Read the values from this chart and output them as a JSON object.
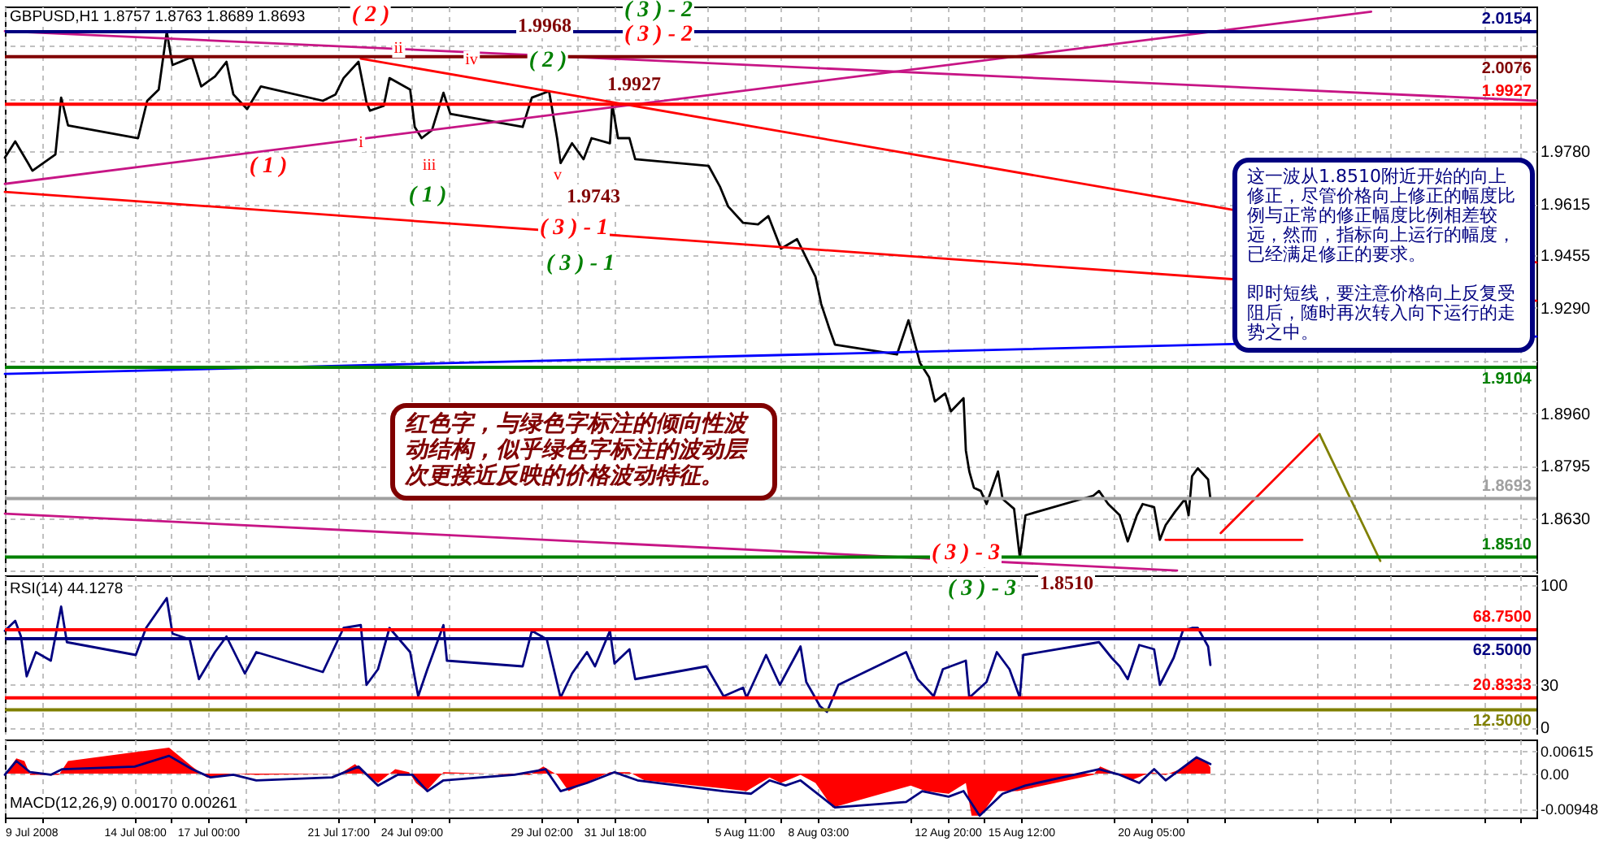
{
  "chart_data": [
    {
      "type": "line",
      "title": "GBPUSD,H1 1.8757 1.8763 1.8689 1.8693",
      "xlim": [
        "2008-07-09T15:00",
        "2008-09-03T05:00"
      ],
      "ylim": [
        1.8463,
        2.0233
      ],
      "xticks": [
        "2008-07-09T15:00",
        "2008-07-10T23:00",
        "2008-07-14T08:00",
        "2008-07-15T16:00",
        "2008-07-17T00:00",
        "2008-07-18T08:00",
        "2008-07-21T17:00",
        "2008-07-23T01:00",
        "2008-07-24T09:00",
        "2008-07-25T17:00",
        "2008-07-29T02:00",
        "2008-07-30T10:00",
        "2008-07-31T18:00",
        "2008-08-04T03:00",
        "2008-08-05T11:00",
        "2008-08-06T19:00",
        "2008-08-08T03:00",
        "2008-08-11T12:00",
        "2008-08-12T20:00",
        "2008-08-14T04:00",
        "2008-08-15T12:00",
        "2008-08-18T21:00",
        "2008-08-20T05:00",
        "2008-08-21T13:00",
        "2008-08-22T21:00",
        "2008-08-26T06:00",
        "2008-08-27T14:00",
        "2008-08-28T22:00",
        "2008-09-01T07:00",
        "2008-09-02T15:00"
      ],
      "yticks": [
        {
          "value": 2.011,
          "label": null
        },
        {
          "value": 1.9945,
          "label": null
        },
        {
          "value": 1.978,
          "label": "1.9780"
        },
        1.9615,
        1.9455,
        {
          "value": 1.929,
          "label": "1.9290"
        },
        {
          "value": 1.9125,
          "label": null
        },
        {
          "value": 1.896,
          "label": "1.8960"
        },
        1.8795,
        {
          "value": 1.863,
          "label": "1.8630"
        },
        {
          "value": 1.847,
          "label": null
        }
      ],
      "grid": true,
      "tick_labels": "y",
      "series": [
        {
          "color": "#000000",
          "x": [
            "2008-07-09T15:00",
            "2008-07-10T00:00",
            "2008-07-10T11:00",
            "2008-07-10T15:00",
            "2008-07-11T11:00",
            "2008-07-11T16:00",
            "2008-07-11T22:00",
            "2008-07-14T11:00",
            "2008-07-14T19:00",
            "2008-07-15T05:00",
            "2008-07-15T12:00",
            "2008-07-15T17:00",
            "2008-07-16T10:00",
            "2008-07-16T18:00",
            "2008-07-17T06:00",
            "2008-07-17T16:00",
            "2008-07-17T22:00",
            "2008-07-18T10:00",
            "2008-07-18T22:00",
            "2008-07-21T04:00",
            "2008-07-21T15:00",
            "2008-07-21T22:00",
            "2008-07-22T11:00",
            "2008-07-22T18:00",
            "2008-07-22T21:00",
            "2008-07-23T09:00",
            "2008-07-23T14:00",
            "2008-07-24T08:00",
            "2008-07-24T12:00",
            "2008-07-24T18:00",
            "2008-07-25T03:00",
            "2008-07-25T13:00",
            "2008-07-25T19:00",
            "2008-07-28T10:00",
            "2008-07-28T18:00",
            "2008-07-29T09:00",
            "2008-07-29T16:00",
            "2008-07-29T19:00",
            "2008-07-30T05:00",
            "2008-07-30T15:00",
            "2008-07-30T22:00",
            "2008-07-31T14:00",
            "2008-07-31T16:00",
            "2008-07-31T21:00",
            "2008-08-01T07:00",
            "2008-08-01T12:00",
            "2008-08-04T04:00",
            "2008-08-04T14:00",
            "2008-08-04T21:00",
            "2008-08-05T10:00",
            "2008-08-05T23:00",
            "2008-08-06T08:00",
            "2008-08-06T19:00",
            "2008-08-07T09:00",
            "2008-08-08T01:00",
            "2008-08-08T06:00",
            "2008-08-08T13:00",
            "2008-08-08T18:00",
            "2008-08-11T00:00",
            "2008-08-11T10:00",
            "2008-08-11T17:00",
            "2008-08-11T20:00",
            "2008-08-12T04:00",
            "2008-08-12T09:00",
            "2008-08-12T18:00",
            "2008-08-12T23:00",
            "2008-08-13T10:00",
            "2008-08-13T12:00",
            "2008-08-13T15:00",
            "2008-08-13T19:00",
            "2008-08-14T01:00",
            "2008-08-14T06:00",
            "2008-08-14T16:00",
            "2008-08-14T20:00",
            "2008-08-15T06:00",
            "2008-08-15T11:00",
            "2008-08-15T16:00",
            "2008-08-18T03:00",
            "2008-08-18T08:00",
            "2008-08-18T16:00",
            "2008-08-19T02:00",
            "2008-08-19T09:00",
            "2008-08-19T17:00",
            "2008-08-19T22:00",
            "2008-08-20T08:00",
            "2008-08-20T13:00",
            "2008-08-20T18:00",
            "2008-08-21T02:00",
            "2008-08-21T11:00",
            "2008-08-21T14:00",
            "2008-08-21T17:00",
            "2008-08-21T22:00",
            "2008-08-22T07:00",
            "2008-08-22T09:00"
          ],
          "values": [
            1.976,
            1.9811,
            1.9744,
            1.9719,
            1.977,
            1.9948,
            1.9861,
            1.9821,
            1.9938,
            1.9973,
            2.0154,
            2.005,
            2.0075,
            1.9983,
            2.0014,
            2.006,
            1.9958,
            1.9912,
            1.9983,
            1.9938,
            1.9958,
            2.0009,
            2.006,
            1.9933,
            1.9907,
            1.9922,
            2.0009,
            1.9973,
            1.9856,
            1.9821,
            1.9846,
            1.9963,
            1.9897,
            1.9856,
            1.9948,
            1.9968,
            1.9821,
            1.9743,
            1.9805,
            1.9755,
            1.9821,
            1.9805,
            1.9927,
            1.9821,
            1.9821,
            1.9755,
            1.9734,
            1.9668,
            1.9607,
            1.9556,
            1.9551,
            1.9577,
            1.9475,
            1.9505,
            1.9388,
            1.9302,
            1.9226,
            1.9175,
            1.9144,
            1.9251,
            1.9159,
            1.9118,
            1.9073,
            1.8997,
            1.9022,
            1.8966,
            1.9007,
            1.8844,
            1.8778,
            1.8727,
            1.8717,
            1.8676,
            1.8778,
            1.8692,
            1.8661,
            1.851,
            1.8641,
            1.8702,
            1.8717,
            1.8676,
            1.8641,
            1.8559,
            1.8641,
            1.8676,
            1.8666,
            1.8564,
            1.861,
            1.8651,
            1.8692,
            1.8641,
            1.8763,
            1.8788,
            1.8753,
            1.8693
          ]
        },
        {
          "color": "#ff0000",
          "x": [
            "2008-07-22T13:00",
            "2008-09-03T05:00"
          ],
          "values": [
            2.007,
            1.9432
          ]
        },
        {
          "color": "#ff0000",
          "x": [
            "2008-07-09T15:00",
            "2008-09-03T05:00"
          ],
          "values": [
            1.9653,
            1.9312
          ]
        },
        {
          "color": "#c71585",
          "x": [
            "2008-07-09T15:00",
            "2008-09-03T05:00"
          ],
          "values": [
            2.0156,
            1.9938
          ]
        },
        {
          "color": "#c71585",
          "x": [
            "2008-07-09T15:00",
            "2008-08-28T05:00"
          ],
          "values": [
            1.9678,
            2.0217
          ]
        },
        {
          "color": "#c71585",
          "x": [
            "2008-07-09T15:00",
            "2008-08-21T04:00"
          ],
          "values": [
            1.8646,
            1.8468
          ]
        },
        {
          "color": "#0000ff",
          "x": [
            "2008-07-09T15:00",
            "2008-09-03T05:00"
          ],
          "values": [
            1.9083,
            1.92
          ]
        },
        {
          "color": "#ff0000",
          "x": [
            "2008-08-20T18:00",
            "2008-08-25T17:00"
          ],
          "values": [
            1.8564,
            1.8564
          ]
        },
        {
          "color": "#ff0000",
          "x": [
            "2008-08-22T18:00",
            "2008-08-26T08:00"
          ],
          "values": [
            1.8585,
            1.8895
          ]
        },
        {
          "color": "#808000",
          "x": [
            "2008-08-26T08:00",
            "2008-08-28T13:00"
          ],
          "values": [
            1.8895,
            1.8498
          ]
        }
      ],
      "ref_lines": [
        {
          "axis": "y",
          "value": 2.0154,
          "label": "2.0154",
          "color": "#000080"
        },
        {
          "axis": "y",
          "value": 2.0076,
          "label": "2.0076",
          "color": "#800000"
        },
        {
          "axis": "y",
          "value": 1.9927,
          "label": "1.9927",
          "color": "#ff0000"
        },
        {
          "axis": "y",
          "value": 1.9104,
          "label": "1.9104",
          "color": "#008000"
        },
        {
          "axis": "y",
          "value": 1.8693,
          "label": "1.8693",
          "color": "#a0a0a0"
        },
        {
          "axis": "y",
          "value": 1.851,
          "label": "1.8510",
          "color": "#008000"
        }
      ],
      "annotations": [
        "( 2 )",
        "1.9968",
        "( 3 ) - 2",
        "( 3 ) - 2",
        "ii",
        "iv",
        "( 2 )",
        "1.9927",
        "( 1 )",
        "i",
        "iii",
        "( 1 )",
        "v",
        "1.9743",
        "( 3 ) - 1",
        "( 3 ) - 1",
        "( 3 ) - 3",
        "红色字，与绿色字标注的倾向性波动结构，似乎绿色字标注的波动层次更接近反映的价格波动特征。",
        "这一波从1.8510附近开始的向上修正，尽管价格向上修正的幅度比例与正常的修正幅度比例相差较远，然而，指标向上运行的幅度，已经满足修正的要求。",
        "即时短线，要注意价格向上反复受阻后，随时再次转入向下运行的走势之中。"
      ]
    },
    {
      "type": "line",
      "title": "RSI(14) 44.1278",
      "xlim": [
        "2008-07-09T15:00",
        "2008-09-03T05:00"
      ],
      "ylim": [
        -5,
        107
      ],
      "xticks": [
        "2008-07-09T15:00",
        "2008-07-10T23:00",
        "2008-07-14T08:00",
        "2008-07-15T16:00",
        "2008-07-17T00:00",
        "2008-07-18T08:00",
        "2008-07-21T17:00",
        "2008-07-23T01:00",
        "2008-07-24T09:00",
        "2008-07-25T17:00",
        "2008-07-29T02:00",
        "2008-07-30T10:00",
        "2008-07-31T18:00",
        "2008-08-04T03:00",
        "2008-08-05T11:00",
        "2008-08-06T19:00",
        "2008-08-08T03:00",
        "2008-08-11T12:00",
        "2008-08-12T20:00",
        "2008-08-14T04:00",
        "2008-08-15T12:00",
        "2008-08-18T21:00",
        "2008-08-20T05:00",
        "2008-08-21T13:00",
        "2008-08-22T21:00",
        "2008-08-26T06:00",
        "2008-08-27T14:00",
        "2008-08-28T22:00",
        "2008-09-01T07:00",
        "2008-09-02T15:00"
      ],
      "yticks": [
        100,
        30,
        0
      ],
      "grid": true,
      "tick_labels": "y",
      "series": [
        {
          "color": "#000080",
          "x": [
            "2008-07-09T15:00",
            "2008-07-10T00:00",
            "2008-07-10T05:00",
            "2008-07-10T10:00",
            "2008-07-10T18:00",
            "2008-07-11T07:00",
            "2008-07-11T16:00",
            "2008-07-11T21:00",
            "2008-07-14T09:00",
            "2008-07-14T18:00",
            "2008-07-15T12:00",
            "2008-07-15T17:00",
            "2008-07-16T08:00",
            "2008-07-16T16:00",
            "2008-07-17T06:00",
            "2008-07-17T16:00",
            "2008-07-18T08:00",
            "2008-07-18T18:00",
            "2008-07-21T04:00",
            "2008-07-21T22:00",
            "2008-07-22T13:00",
            "2008-07-22T18:00",
            "2008-07-23T04:00",
            "2008-07-23T14:00",
            "2008-07-24T08:00",
            "2008-07-24T15:00",
            "2008-07-24T23:00",
            "2008-07-25T13:00",
            "2008-07-25T16:00",
            "2008-07-28T10:00",
            "2008-07-28T18:00",
            "2008-07-29T07:00",
            "2008-07-29T19:00",
            "2008-07-30T05:00",
            "2008-07-30T18:00",
            "2008-07-31T01:00",
            "2008-07-31T14:00",
            "2008-07-31T18:00",
            "2008-08-01T07:00",
            "2008-08-01T12:00",
            "2008-08-04T02:00",
            "2008-08-04T17:00",
            "2008-08-05T10:00",
            "2008-08-05T13:00",
            "2008-08-06T06:00",
            "2008-08-06T18:00",
            "2008-08-07T12:00",
            "2008-08-07T17:00",
            "2008-08-08T05:00",
            "2008-08-08T11:00",
            "2008-08-08T21:00",
            "2008-08-11T08:00",
            "2008-08-11T18:00",
            "2008-08-12T08:00",
            "2008-08-12T16:00",
            "2008-08-13T12:00",
            "2008-08-13T15:00",
            "2008-08-14T06:00",
            "2008-08-14T15:00",
            "2008-08-15T02:00",
            "2008-08-15T11:00",
            "2008-08-15T14:00",
            "2008-08-18T08:00",
            "2008-08-18T19:00",
            "2008-08-19T02:00",
            "2008-08-19T09:00",
            "2008-08-19T19:00",
            "2008-08-20T08:00",
            "2008-08-20T13:00",
            "2008-08-21T01:00",
            "2008-08-21T09:00",
            "2008-08-21T17:00",
            "2008-08-21T22:00",
            "2008-08-22T07:00",
            "2008-08-22T09:00"
          ],
          "values": [
            68,
            75,
            64,
            36,
            53,
            47,
            85,
            60,
            51,
            70,
            91,
            66,
            62,
            34,
            53,
            64,
            38,
            53,
            39,
            70,
            72,
            30,
            41,
            70,
            53,
            22,
            41,
            72,
            47,
            43,
            68,
            62,
            21,
            38,
            53,
            43,
            68,
            45,
            55,
            34,
            43,
            22,
            28,
            21,
            51,
            30,
            57,
            32,
            15,
            11,
            30,
            53,
            34,
            22,
            41,
            47,
            21,
            32,
            53,
            41,
            21,
            51,
            60,
            49,
            43,
            34,
            58,
            55,
            30,
            49,
            68,
            70,
            70,
            57,
            44
          ]
        }
      ],
      "ref_lines": [
        {
          "axis": "y",
          "value": 68.75,
          "label": "68.7500",
          "color": "#ff0000"
        },
        {
          "axis": "y",
          "value": 62.5,
          "label": "62.5000",
          "color": "#000080"
        },
        {
          "axis": "y",
          "value": 20.8333,
          "label": "20.8333",
          "color": "#ff0000"
        },
        {
          "axis": "y",
          "value": 12.5,
          "label": "12.5000",
          "color": "#808000"
        }
      ],
      "annotations": [
        "( 3 ) - 3",
        "1.8510"
      ]
    },
    {
      "type": "line",
      "title": "MACD(12,26,9) 0.00170 0.00261",
      "xlim": [
        "2008-07-09T15:00",
        "2008-09-03T05:00"
      ],
      "ylim": [
        -0.0118,
        0.0092
      ],
      "xticks": [
        {
          "value": "2008-07-09T15:00",
          "label": "9 Jul 2008"
        },
        {
          "value": "2008-07-10T23:00",
          "label": null
        },
        {
          "value": "2008-07-14T08:00",
          "label": "14 Jul 08:00"
        },
        {
          "value": "2008-07-15T16:00",
          "label": null
        },
        {
          "value": "2008-07-17T00:00",
          "label": "17 Jul 00:00"
        },
        {
          "value": "2008-07-18T08:00",
          "label": null
        },
        {
          "value": "2008-07-21T17:00",
          "label": "21 Jul 17:00"
        },
        {
          "value": "2008-07-23T01:00",
          "label": null
        },
        {
          "value": "2008-07-24T09:00",
          "label": "24 Jul 09:00"
        },
        {
          "value": "2008-07-25T17:00",
          "label": null
        },
        {
          "value": "2008-07-29T02:00",
          "label": "29 Jul 02:00"
        },
        {
          "value": "2008-07-30T10:00",
          "label": null
        },
        {
          "value": "2008-07-31T18:00",
          "label": "31 Jul 18:00"
        },
        {
          "value": "2008-08-04T03:00",
          "label": null
        },
        {
          "value": "2008-08-05T11:00",
          "label": "5 Aug 11:00"
        },
        {
          "value": "2008-08-06T19:00",
          "label": null
        },
        {
          "value": "2008-08-08T03:00",
          "label": "8 Aug 03:00"
        },
        {
          "value": "2008-08-11T12:00",
          "label": null
        },
        {
          "value": "2008-08-12T20:00",
          "label": "12 Aug 20:00"
        },
        {
          "value": "2008-08-14T04:00",
          "label": null
        },
        {
          "value": "2008-08-15T12:00",
          "label": "15 Aug 12:00"
        },
        {
          "value": "2008-08-18T21:00",
          "label": null
        },
        {
          "value": "2008-08-20T05:00",
          "label": "20 Aug 05:00"
        },
        {
          "value": "2008-08-21T13:00",
          "label": null
        },
        {
          "value": "2008-08-22T21:00",
          "label": null
        },
        {
          "value": "2008-08-26T06:00",
          "label": null
        },
        {
          "value": "2008-08-27T14:00",
          "label": null
        },
        {
          "value": "2008-08-28T22:00",
          "label": null
        },
        {
          "value": "2008-09-01T07:00",
          "label": null
        },
        {
          "value": "2008-09-02T15:00",
          "label": null
        }
      ],
      "yticks": [
        0.00615,
        {
          "value": 0,
          "label": "0.00"
        },
        -0.00948
      ],
      "grid": true,
      "series": [
        {
          "type": "area",
          "color": "#ff0000",
          "x": [
            "2008-07-09T15:00",
            "2008-07-10T01:00",
            "2008-07-10T08:00",
            "2008-07-10T13:00",
            "2008-07-11T14:00",
            "2008-07-11T22:00",
            "2008-07-15T14:00",
            "2008-07-16T10:00",
            "2008-07-16T23:00",
            "2008-07-17T22:00",
            "2008-07-18T18:00",
            "2008-07-21T19:00",
            "2008-07-22T08:00",
            "2008-07-22T18:00",
            "2008-07-23T04:00",
            "2008-07-23T19:00",
            "2008-07-24T07:00",
            "2008-07-24T13:00",
            "2008-07-24T22:00",
            "2008-07-25T13:00",
            "2008-07-28T16:00",
            "2008-07-29T04:00",
            "2008-07-29T16:00",
            "2008-07-30T02:00",
            "2008-07-30T22:00",
            "2008-07-31T14:00",
            "2008-08-01T07:00",
            "2008-08-01T20:00",
            "2008-08-04T17:00",
            "2008-08-05T13:00",
            "2008-08-06T09:00",
            "2008-08-06T19:00",
            "2008-08-07T12:00",
            "2008-08-08T01:00",
            "2008-08-08T16:00",
            "2008-08-11T12:00",
            "2008-08-12T01:00",
            "2008-08-12T21:00",
            "2008-08-13T12:00",
            "2008-08-13T17:00",
            "2008-08-14T01:00",
            "2008-08-14T16:00",
            "2008-08-15T09:00",
            "2008-08-18T03:00",
            "2008-08-18T09:00",
            "2008-08-19T02:00",
            "2008-08-19T12:00",
            "2008-08-20T05:00",
            "2008-08-20T18:00",
            "2008-08-21T07:00",
            "2008-08-21T21:00",
            "2008-08-22T05:00",
            "2008-08-22T09:00"
          ],
          "values": [
            -0.0003,
            0.0041,
            0.0034,
            -0.0003,
            -0.0003,
            0.0034,
            0.007,
            0.0019,
            -0.001,
            0,
            -0.0003,
            0,
            0.0026,
            -0.0003,
            -0.0025,
            0.0012,
            0.0004,
            -0.0025,
            -0.0047,
            0.0004,
            -0.0003,
            0.0019,
            -0.0003,
            -0.0047,
            -0.0018,
            0.0004,
            0.0004,
            -0.0018,
            -0.004,
            -0.0047,
            -0.001,
            -0.0025,
            -0.0003,
            -0.0025,
            -0.0091,
            -0.0032,
            -0.0047,
            -0.0054,
            -0.0025,
            -0.0113,
            -0.0113,
            -0.0047,
            -0.0047,
            -0.0003,
            0.0019,
            -0.0003,
            -0.0018,
            0.0004,
            -0.0003,
            0.0012,
            0.0044,
            0.0034,
            0.0017
          ]
        },
        {
          "color": "#000080",
          "x": [
            "2008-07-09T15:00",
            "2008-07-10T01:00",
            "2008-07-10T13:00",
            "2008-07-11T07:00",
            "2008-07-11T17:00",
            "2008-07-14T08:00",
            "2008-07-15T14:00",
            "2008-07-16T10:00",
            "2008-07-17T02:00",
            "2008-07-17T22:00",
            "2008-07-18T18:00",
            "2008-07-21T12:00",
            "2008-07-22T11:00",
            "2008-07-23T04:00",
            "2008-07-23T21:00",
            "2008-07-24T10:00",
            "2008-07-24T23:00",
            "2008-07-25T13:00",
            "2008-07-28T03:00",
            "2008-07-29T06:00",
            "2008-07-29T19:00",
            "2008-07-30T18:00",
            "2008-07-31T18:00",
            "2008-08-01T14:00",
            "2008-08-04T17:00",
            "2008-08-05T17:00",
            "2008-08-06T09:00",
            "2008-08-06T23:00",
            "2008-08-07T12:00",
            "2008-08-08T18:00",
            "2008-08-11T08:00",
            "2008-08-11T22:00",
            "2008-08-12T21:00",
            "2008-08-13T10:00",
            "2008-08-14T00:00",
            "2008-08-14T20:00",
            "2008-08-15T16:00",
            "2008-08-18T08:00",
            "2008-08-19T02:00",
            "2008-08-19T19:00",
            "2008-08-20T08:00",
            "2008-08-20T18:00",
            "2008-08-21T07:00",
            "2008-08-21T21:00",
            "2008-08-22T09:00"
          ],
          "values": [
            -0.0003,
            0.0034,
            0.0004,
            -0.0003,
            0.0012,
            0.0019,
            0.0048,
            0.0012,
            -0.001,
            -0.0003,
            -0.0018,
            -0.001,
            0.0019,
            -0.0032,
            -0.0003,
            -0.0003,
            -0.0047,
            -0.0018,
            -0.0003,
            0.0012,
            -0.0047,
            -0.0025,
            0.0004,
            -0.0018,
            -0.0047,
            -0.0054,
            -0.0018,
            -0.0032,
            -0.0018,
            -0.0091,
            -0.0076,
            -0.0047,
            -0.0062,
            -0.0047,
            -0.0113,
            -0.0054,
            -0.0032,
            0.0012,
            -0.0003,
            -0.0025,
            0.0012,
            -0.0018,
            0.0012,
            0.0044,
            0.0026
          ]
        }
      ]
    }
  ]
}
